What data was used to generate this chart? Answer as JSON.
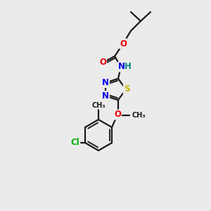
{
  "bg_color": "#ebebeb",
  "bond_color": "#1a1a1a",
  "bond_width": 1.6,
  "atom_colors": {
    "N": "#0000ee",
    "O": "#ee0000",
    "S": "#bbbb00",
    "Cl": "#00aa00",
    "C": "#1a1a1a",
    "H": "#008888"
  },
  "font_size": 8.5
}
